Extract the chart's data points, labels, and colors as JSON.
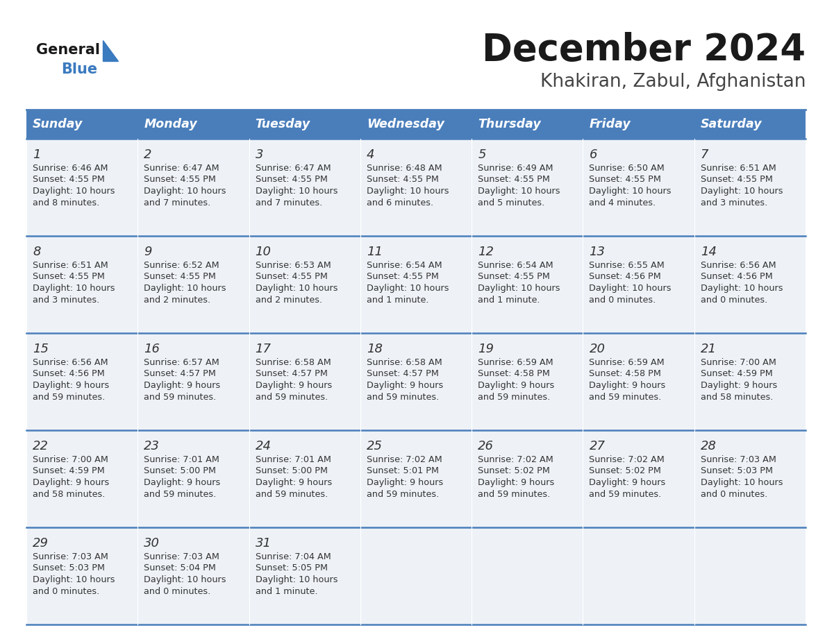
{
  "title": "December 2024",
  "subtitle": "Khakiran, Zabul, Afghanistan",
  "header_color": "#4a7ebb",
  "header_text_color": "#ffffff",
  "cell_bg_color": "#eef2f7",
  "border_color": "#4a7ebb",
  "days_of_week": [
    "Sunday",
    "Monday",
    "Tuesday",
    "Wednesday",
    "Thursday",
    "Friday",
    "Saturday"
  ],
  "weeks": [
    [
      {
        "day": 1,
        "sunrise": "6:46 AM",
        "sunset": "4:55 PM",
        "daylight_line1": "10 hours",
        "daylight_line2": "and 8 minutes."
      },
      {
        "day": 2,
        "sunrise": "6:47 AM",
        "sunset": "4:55 PM",
        "daylight_line1": "10 hours",
        "daylight_line2": "and 7 minutes."
      },
      {
        "day": 3,
        "sunrise": "6:47 AM",
        "sunset": "4:55 PM",
        "daylight_line1": "10 hours",
        "daylight_line2": "and 7 minutes."
      },
      {
        "day": 4,
        "sunrise": "6:48 AM",
        "sunset": "4:55 PM",
        "daylight_line1": "10 hours",
        "daylight_line2": "and 6 minutes."
      },
      {
        "day": 5,
        "sunrise": "6:49 AM",
        "sunset": "4:55 PM",
        "daylight_line1": "10 hours",
        "daylight_line2": "and 5 minutes."
      },
      {
        "day": 6,
        "sunrise": "6:50 AM",
        "sunset": "4:55 PM",
        "daylight_line1": "10 hours",
        "daylight_line2": "and 4 minutes."
      },
      {
        "day": 7,
        "sunrise": "6:51 AM",
        "sunset": "4:55 PM",
        "daylight_line1": "10 hours",
        "daylight_line2": "and 3 minutes."
      }
    ],
    [
      {
        "day": 8,
        "sunrise": "6:51 AM",
        "sunset": "4:55 PM",
        "daylight_line1": "10 hours",
        "daylight_line2": "and 3 minutes."
      },
      {
        "day": 9,
        "sunrise": "6:52 AM",
        "sunset": "4:55 PM",
        "daylight_line1": "10 hours",
        "daylight_line2": "and 2 minutes."
      },
      {
        "day": 10,
        "sunrise": "6:53 AM",
        "sunset": "4:55 PM",
        "daylight_line1": "10 hours",
        "daylight_line2": "and 2 minutes."
      },
      {
        "day": 11,
        "sunrise": "6:54 AM",
        "sunset": "4:55 PM",
        "daylight_line1": "10 hours",
        "daylight_line2": "and 1 minute."
      },
      {
        "day": 12,
        "sunrise": "6:54 AM",
        "sunset": "4:55 PM",
        "daylight_line1": "10 hours",
        "daylight_line2": "and 1 minute."
      },
      {
        "day": 13,
        "sunrise": "6:55 AM",
        "sunset": "4:56 PM",
        "daylight_line1": "10 hours",
        "daylight_line2": "and 0 minutes."
      },
      {
        "day": 14,
        "sunrise": "6:56 AM",
        "sunset": "4:56 PM",
        "daylight_line1": "10 hours",
        "daylight_line2": "and 0 minutes."
      }
    ],
    [
      {
        "day": 15,
        "sunrise": "6:56 AM",
        "sunset": "4:56 PM",
        "daylight_line1": "9 hours",
        "daylight_line2": "and 59 minutes."
      },
      {
        "day": 16,
        "sunrise": "6:57 AM",
        "sunset": "4:57 PM",
        "daylight_line1": "9 hours",
        "daylight_line2": "and 59 minutes."
      },
      {
        "day": 17,
        "sunrise": "6:58 AM",
        "sunset": "4:57 PM",
        "daylight_line1": "9 hours",
        "daylight_line2": "and 59 minutes."
      },
      {
        "day": 18,
        "sunrise": "6:58 AM",
        "sunset": "4:57 PM",
        "daylight_line1": "9 hours",
        "daylight_line2": "and 59 minutes."
      },
      {
        "day": 19,
        "sunrise": "6:59 AM",
        "sunset": "4:58 PM",
        "daylight_line1": "9 hours",
        "daylight_line2": "and 59 minutes."
      },
      {
        "day": 20,
        "sunrise": "6:59 AM",
        "sunset": "4:58 PM",
        "daylight_line1": "9 hours",
        "daylight_line2": "and 59 minutes."
      },
      {
        "day": 21,
        "sunrise": "7:00 AM",
        "sunset": "4:59 PM",
        "daylight_line1": "9 hours",
        "daylight_line2": "and 58 minutes."
      }
    ],
    [
      {
        "day": 22,
        "sunrise": "7:00 AM",
        "sunset": "4:59 PM",
        "daylight_line1": "9 hours",
        "daylight_line2": "and 58 minutes."
      },
      {
        "day": 23,
        "sunrise": "7:01 AM",
        "sunset": "5:00 PM",
        "daylight_line1": "9 hours",
        "daylight_line2": "and 59 minutes."
      },
      {
        "day": 24,
        "sunrise": "7:01 AM",
        "sunset": "5:00 PM",
        "daylight_line1": "9 hours",
        "daylight_line2": "and 59 minutes."
      },
      {
        "day": 25,
        "sunrise": "7:02 AM",
        "sunset": "5:01 PM",
        "daylight_line1": "9 hours",
        "daylight_line2": "and 59 minutes."
      },
      {
        "day": 26,
        "sunrise": "7:02 AM",
        "sunset": "5:02 PM",
        "daylight_line1": "9 hours",
        "daylight_line2": "and 59 minutes."
      },
      {
        "day": 27,
        "sunrise": "7:02 AM",
        "sunset": "5:02 PM",
        "daylight_line1": "9 hours",
        "daylight_line2": "and 59 minutes."
      },
      {
        "day": 28,
        "sunrise": "7:03 AM",
        "sunset": "5:03 PM",
        "daylight_line1": "10 hours",
        "daylight_line2": "and 0 minutes."
      }
    ],
    [
      {
        "day": 29,
        "sunrise": "7:03 AM",
        "sunset": "5:03 PM",
        "daylight_line1": "10 hours",
        "daylight_line2": "and 0 minutes."
      },
      {
        "day": 30,
        "sunrise": "7:03 AM",
        "sunset": "5:04 PM",
        "daylight_line1": "10 hours",
        "daylight_line2": "and 0 minutes."
      },
      {
        "day": 31,
        "sunrise": "7:04 AM",
        "sunset": "5:05 PM",
        "daylight_line1": "10 hours",
        "daylight_line2": "and 1 minute."
      },
      null,
      null,
      null,
      null
    ]
  ],
  "logo_triangle_color": "#3a7abf",
  "fig_width": 11.88,
  "fig_height": 9.18,
  "dpi": 100
}
